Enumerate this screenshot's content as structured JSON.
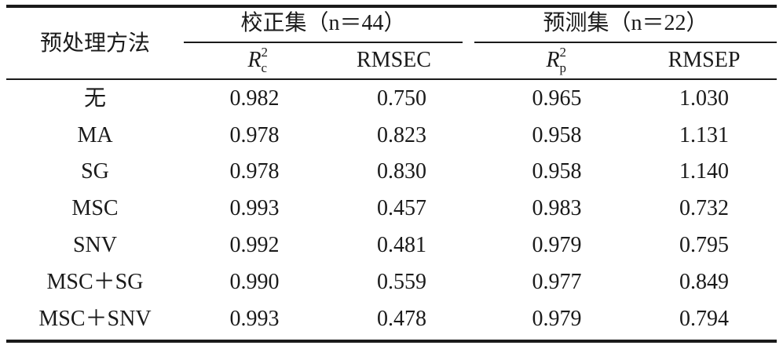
{
  "table": {
    "header": {
      "method_label": "预处理方法",
      "calibration_group": "校正集（n＝44）",
      "prediction_group": "预测集（n＝22）",
      "rc_symbol": "R",
      "rc_sup": "2",
      "rc_sub": "c",
      "rmsec": "RMSEC",
      "rp_symbol": "R",
      "rp_sup": "2",
      "rp_sub": "p",
      "rmsep": "RMSEP"
    },
    "rows": [
      {
        "method": "无",
        "rc2": "0.982",
        "rmsec": "0.750",
        "rp2": "0.965",
        "rmsep": "1.030"
      },
      {
        "method": "MA",
        "rc2": "0.978",
        "rmsec": "0.823",
        "rp2": "0.958",
        "rmsep": "1.131"
      },
      {
        "method": "SG",
        "rc2": "0.978",
        "rmsec": "0.830",
        "rp2": "0.958",
        "rmsep": "1.140"
      },
      {
        "method": "MSC",
        "rc2": "0.993",
        "rmsec": "0.457",
        "rp2": "0.983",
        "rmsep": "0.732"
      },
      {
        "method": "SNV",
        "rc2": "0.992",
        "rmsec": "0.481",
        "rp2": "0.979",
        "rmsep": "0.795"
      },
      {
        "method": "MSC＋SG",
        "rc2": "0.990",
        "rmsec": "0.559",
        "rp2": "0.977",
        "rmsep": "0.849"
      },
      {
        "method": "MSC＋SNV",
        "rc2": "0.993",
        "rmsec": "0.478",
        "rp2": "0.979",
        "rmsep": "0.794"
      }
    ]
  }
}
